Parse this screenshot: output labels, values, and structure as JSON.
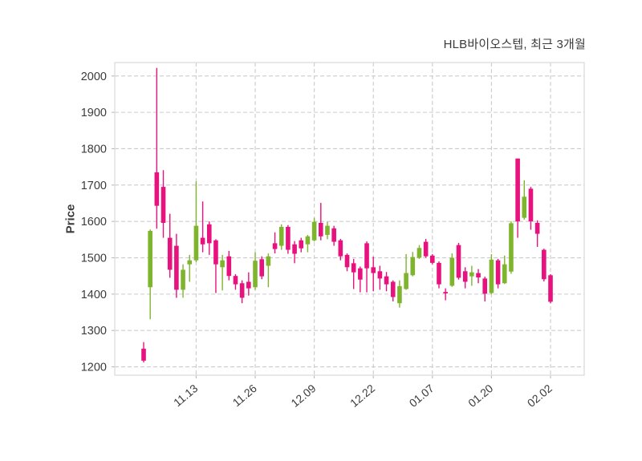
{
  "header": {
    "title": "HLB바이오스텝, 최근 3개월"
  },
  "chart_data": {
    "type": "candlestick",
    "title": "HLB바이오스텝, 최근 3개월",
    "ylabel": "Price",
    "xlabel": "",
    "grid": "dashed-both-axes",
    "legend": "none",
    "ylim": [
      1177,
      2037
    ],
    "y_ticks": [
      2000,
      1900,
      1800,
      1700,
      1600,
      1500,
      1400,
      1300,
      1200
    ],
    "x_ticks": [
      {
        "index": 8,
        "label": "11.13"
      },
      {
        "index": 17,
        "label": "11.26"
      },
      {
        "index": 26,
        "label": "12.09"
      },
      {
        "index": 35,
        "label": "12.22"
      },
      {
        "index": 44,
        "label": "01.07"
      },
      {
        "index": 53,
        "label": "01.20"
      },
      {
        "index": 62,
        "label": "02.02"
      }
    ],
    "colors": {
      "up": "#7eb52d",
      "down": "#e8127e",
      "grid": "#cccccc",
      "panel_border": "#d9d9d9",
      "tick_text": "#3b3b3b"
    },
    "candles_format": [
      "open",
      "high",
      "low",
      "close"
    ],
    "candles": [
      [
        1250,
        1268,
        1212,
        1217
      ],
      [
        1419,
        1578,
        1331,
        1574
      ],
      [
        1735,
        2022,
        1580,
        1643
      ],
      [
        1695,
        1741,
        1555,
        1596
      ],
      [
        1555,
        1621,
        1445,
        1467
      ],
      [
        1533,
        1566,
        1390,
        1412
      ],
      [
        1412,
        1482,
        1390,
        1467
      ],
      [
        1482,
        1508,
        1434,
        1493
      ],
      [
        1493,
        1710,
        1488,
        1588
      ],
      [
        1555,
        1655,
        1515,
        1537
      ],
      [
        1592,
        1600,
        1508,
        1540
      ],
      [
        1548,
        1551,
        1403,
        1482
      ],
      [
        1474,
        1508,
        1410,
        1493
      ],
      [
        1504,
        1519,
        1438,
        1450
      ],
      [
        1450,
        1455,
        1412,
        1427
      ],
      [
        1430,
        1438,
        1375,
        1390
      ],
      [
        1434,
        1460,
        1396,
        1416
      ],
      [
        1419,
        1515,
        1412,
        1492
      ],
      [
        1496,
        1504,
        1441,
        1449
      ],
      [
        1478,
        1512,
        1419,
        1504
      ],
      [
        1540,
        1570,
        1512,
        1524
      ],
      [
        1533,
        1592,
        1522,
        1585
      ],
      [
        1585,
        1590,
        1511,
        1522
      ],
      [
        1537,
        1546,
        1485,
        1511
      ],
      [
        1548,
        1555,
        1515,
        1526
      ],
      [
        1537,
        1563,
        1515,
        1559
      ],
      [
        1548,
        1610,
        1545,
        1599
      ],
      [
        1596,
        1651,
        1548,
        1559
      ],
      [
        1563,
        1599,
        1551,
        1588
      ],
      [
        1581,
        1588,
        1533,
        1544
      ],
      [
        1548,
        1552,
        1493,
        1504
      ],
      [
        1508,
        1512,
        1463,
        1474
      ],
      [
        1485,
        1497,
        1414,
        1460
      ],
      [
        1471,
        1476,
        1405,
        1440
      ],
      [
        1540,
        1545,
        1405,
        1471
      ],
      [
        1474,
        1503,
        1408,
        1458
      ],
      [
        1463,
        1478,
        1412,
        1443
      ],
      [
        1449,
        1461,
        1408,
        1427
      ],
      [
        1434,
        1438,
        1380,
        1392
      ],
      [
        1375,
        1438,
        1363,
        1422
      ],
      [
        1414,
        1510,
        1412,
        1458
      ],
      [
        1452,
        1516,
        1449,
        1502
      ],
      [
        1500,
        1535,
        1497,
        1527
      ],
      [
        1544,
        1552,
        1500,
        1504
      ],
      [
        1506,
        1510,
        1482,
        1486
      ],
      [
        1486,
        1490,
        1416,
        1427
      ],
      [
        1406,
        1416,
        1383,
        1402
      ],
      [
        1423,
        1512,
        1420,
        1500
      ],
      [
        1535,
        1541,
        1440,
        1445
      ],
      [
        1463,
        1474,
        1416,
        1434
      ],
      [
        1449,
        1478,
        1423,
        1460
      ],
      [
        1458,
        1469,
        1430,
        1446
      ],
      [
        1443,
        1448,
        1380,
        1401
      ],
      [
        1403,
        1510,
        1400,
        1495
      ],
      [
        1493,
        1497,
        1416,
        1427
      ],
      [
        1430,
        1506,
        1428,
        1482
      ],
      [
        1462,
        1600,
        1456,
        1595
      ],
      [
        1773,
        1773,
        1555,
        1600
      ],
      [
        1610,
        1713,
        1605,
        1668
      ],
      [
        1690,
        1695,
        1577,
        1600
      ],
      [
        1596,
        1603,
        1530,
        1566
      ],
      [
        1522,
        1525,
        1435,
        1441
      ],
      [
        1452,
        1455,
        1375,
        1379
      ]
    ]
  }
}
